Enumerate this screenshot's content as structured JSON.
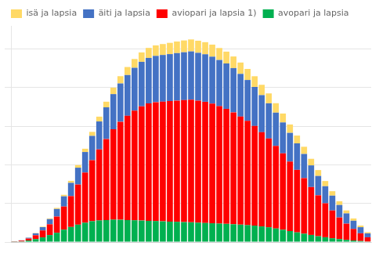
{
  "chart_data": {
    "type": "bar",
    "stacked": true,
    "categories": [
      null,
      null,
      null,
      null,
      null,
      null,
      null,
      null,
      null,
      null,
      null,
      null,
      null,
      null,
      null,
      null,
      null,
      null,
      null,
      null,
      null,
      null,
      null,
      null,
      null,
      null,
      null,
      null,
      null,
      null,
      null,
      null,
      null,
      null,
      null,
      null,
      null,
      null,
      null,
      null,
      null,
      null,
      null,
      null,
      null,
      null,
      null,
      null,
      null,
      null,
      null
    ],
    "series": [
      {
        "name": "avopari ja lapsia",
        "color": "#00B050",
        "values": [
          30,
          80,
          200,
          380,
          600,
          900,
          1200,
          1600,
          1950,
          2250,
          2500,
          2700,
          2800,
          2850,
          2900,
          2880,
          2850,
          2820,
          2780,
          2750,
          2720,
          2680,
          2650,
          2620,
          2580,
          2550,
          2510,
          2470,
          2430,
          2390,
          2350,
          2300,
          2250,
          2190,
          2130,
          2020,
          1910,
          1760,
          1590,
          1420,
          1250,
          1080,
          920,
          750,
          620,
          490,
          380,
          280,
          200,
          130,
          65
        ]
      },
      {
        "name": "aviopari ja lapsia 1)",
        "color": "#FF0000",
        "values": [
          30,
          100,
          250,
          500,
          900,
          1400,
          2100,
          3000,
          4000,
          5200,
          6500,
          7900,
          9200,
          10500,
          11700,
          12700,
          13500,
          14200,
          14800,
          15200,
          15400,
          15500,
          15600,
          15700,
          15800,
          15900,
          15800,
          15700,
          15500,
          15200,
          14900,
          14500,
          14000,
          13500,
          12900,
          12200,
          11500,
          10700,
          9900,
          9000,
          8100,
          7200,
          6200,
          5300,
          4400,
          3600,
          2800,
          2100,
          1500,
          1000,
          550
        ]
      },
      {
        "name": "äiti ja lapsia",
        "color": "#4472C4",
        "values": [
          10,
          40,
          110,
          250,
          430,
          670,
          980,
          1320,
          1720,
          2180,
          2660,
          3150,
          3620,
          4100,
          4560,
          4960,
          5280,
          5550,
          5760,
          5900,
          5990,
          6050,
          6090,
          6150,
          6200,
          6240,
          6200,
          6150,
          6080,
          5990,
          5880,
          5730,
          5530,
          5300,
          5060,
          4810,
          4560,
          4300,
          4000,
          3720,
          3430,
          3130,
          2810,
          2510,
          2210,
          1920,
          1620,
          1330,
          1060,
          790,
          510
        ]
      },
      {
        "name": "isä ja lapsia",
        "color": "#FFD966",
        "values": [
          3,
          8,
          18,
          35,
          60,
          95,
          140,
          195,
          260,
          340,
          425,
          520,
          620,
          725,
          835,
          940,
          1040,
          1135,
          1220,
          1295,
          1360,
          1415,
          1460,
          1500,
          1530,
          1550,
          1560,
          1565,
          1560,
          1550,
          1530,
          1505,
          1470,
          1430,
          1385,
          1335,
          1280,
          1220,
          1155,
          1085,
          1010,
          930,
          850,
          760,
          670,
          575,
          480,
          385,
          295,
          215,
          145
        ]
      }
    ],
    "ylim": [
      0,
      28000
    ],
    "yticks": [
      0,
      5000,
      10000,
      15000,
      20000,
      25000
    ],
    "grid": true,
    "legend": "upper left",
    "tick_labels": false
  }
}
